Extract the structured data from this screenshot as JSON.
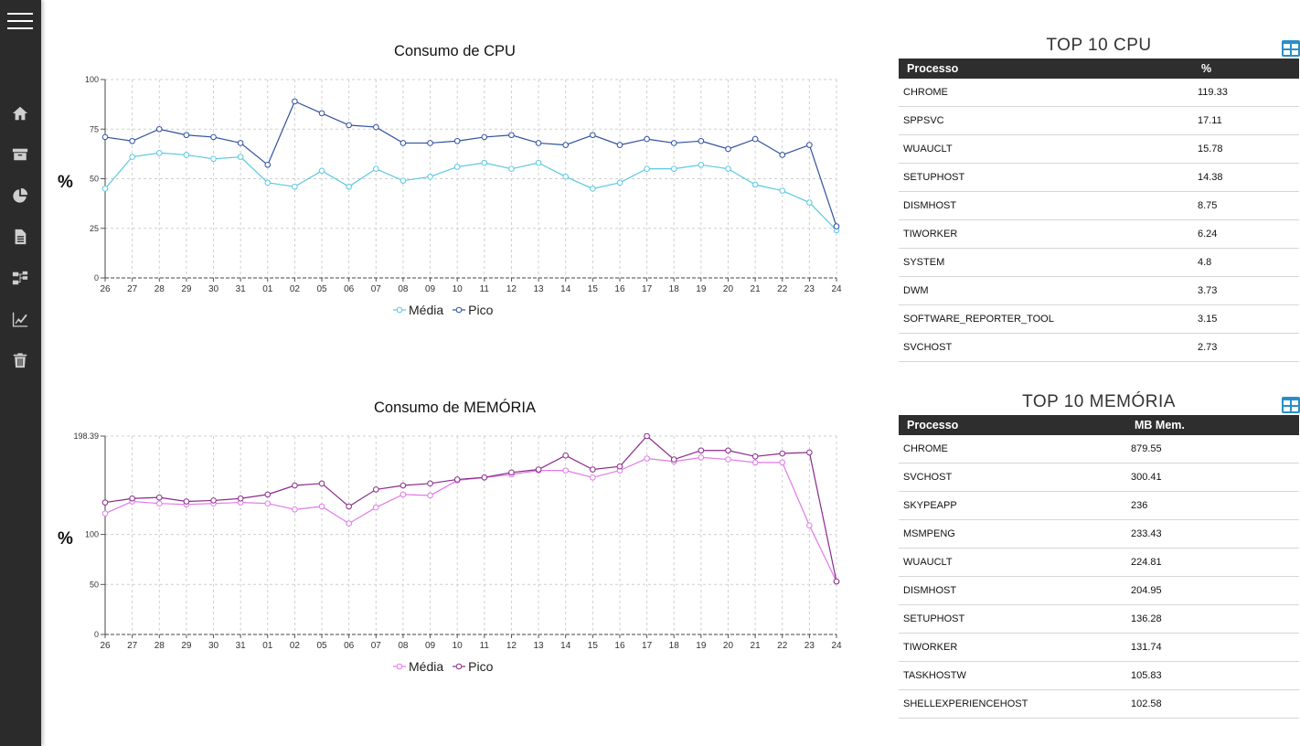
{
  "sidebar": {
    "menu_icon": "hamburger-menu-icon",
    "items": [
      {
        "icon": "home-icon"
      },
      {
        "icon": "archive-icon"
      },
      {
        "icon": "pie-chart-icon"
      },
      {
        "icon": "document-icon"
      },
      {
        "icon": "sitemap-icon"
      },
      {
        "icon": "edit-chart-icon"
      },
      {
        "icon": "trash-icon"
      }
    ]
  },
  "cpu_chart": {
    "title": "Consumo de CPU",
    "unit": "%"
  },
  "mem_chart": {
    "title": "Consumo de MEMÓRIA",
    "unit": "%"
  },
  "chart_data": [
    {
      "type": "line",
      "title": "Consumo de CPU",
      "ylabel": "%",
      "xlabel": "",
      "categories": [
        "26",
        "27",
        "28",
        "29",
        "30",
        "31",
        "01",
        "02",
        "05",
        "06",
        "07",
        "08",
        "09",
        "10",
        "11",
        "12",
        "13",
        "14",
        "15",
        "16",
        "17",
        "18",
        "19",
        "20",
        "21",
        "22",
        "23",
        "24"
      ],
      "yticks": [
        "0",
        "25",
        "50",
        "75",
        "100"
      ],
      "ylim": [
        0,
        100
      ],
      "grid": true,
      "legend": "bottom-center",
      "series": [
        {
          "name": "Média",
          "color": "#5bc8e0",
          "values": [
            45,
            61,
            63,
            62,
            60,
            61,
            48,
            46,
            54,
            46,
            55,
            49,
            51,
            56,
            58,
            55,
            58,
            51,
            45,
            48,
            55,
            55,
            57,
            55,
            47,
            44,
            38,
            24
          ]
        },
        {
          "name": "Pico",
          "color": "#2f4fa0",
          "values": [
            71,
            69,
            75,
            72,
            71,
            68,
            57,
            89,
            83,
            77,
            76,
            68,
            68,
            69,
            71,
            72,
            68,
            67,
            72,
            67,
            70,
            68,
            69,
            65,
            70,
            62,
            67,
            26
          ]
        }
      ]
    },
    {
      "type": "line",
      "title": "Consumo de MEMÓRIA",
      "ylabel": "%",
      "xlabel": "",
      "categories": [
        "26",
        "27",
        "28",
        "29",
        "30",
        "31",
        "01",
        "02",
        "05",
        "06",
        "07",
        "08",
        "09",
        "10",
        "11",
        "12",
        "13",
        "14",
        "15",
        "16",
        "17",
        "18",
        "19",
        "20",
        "21",
        "22",
        "23",
        "24"
      ],
      "yticks": [
        "0",
        "50",
        "100",
        "198.39"
      ],
      "ylim": [
        0,
        198.39
      ],
      "grid": true,
      "legend": "bottom-center",
      "series": [
        {
          "name": "Média",
          "color": "#e07ae8",
          "values": [
            121,
            133,
            131,
            130,
            131,
            132,
            131,
            125,
            128,
            111,
            127,
            140,
            139,
            154,
            157,
            160,
            164,
            164,
            157,
            164,
            176,
            173,
            177,
            175,
            172,
            172,
            109,
            53
          ]
        },
        {
          "name": "Pico",
          "color": "#8a2b8a",
          "values": [
            132,
            136,
            137,
            133,
            134,
            136,
            140,
            149,
            151,
            128,
            145,
            149,
            151,
            155,
            157,
            162,
            165,
            179,
            165,
            168,
            203,
            175,
            184,
            184,
            178,
            181,
            182,
            53
          ]
        }
      ]
    }
  ],
  "top_cpu": {
    "title": "TOP 10 CPU",
    "icon": "table-icon",
    "col_process": "Processo",
    "col_value": "%",
    "rows": [
      {
        "name": "CHROME",
        "value": "119.33"
      },
      {
        "name": "SPPSVC",
        "value": "17.11"
      },
      {
        "name": "WUAUCLT",
        "value": "15.78"
      },
      {
        "name": "SETUPHOST",
        "value": "14.38"
      },
      {
        "name": "DISMHOST",
        "value": "8.75"
      },
      {
        "name": "TIWORKER",
        "value": "6.24"
      },
      {
        "name": "SYSTEM",
        "value": "4.8"
      },
      {
        "name": "DWM",
        "value": "3.73"
      },
      {
        "name": "SOFTWARE_REPORTER_TOOL",
        "value": "3.15"
      },
      {
        "name": "SVCHOST",
        "value": "2.73"
      }
    ]
  },
  "top_mem": {
    "title": "TOP 10 MEMÓRIA",
    "icon": "table-icon",
    "col_process": "Processo",
    "col_value": "MB Mem.",
    "rows": [
      {
        "name": "CHROME",
        "value": "879.55"
      },
      {
        "name": "SVCHOST",
        "value": "300.41"
      },
      {
        "name": "SKYPEAPP",
        "value": "236"
      },
      {
        "name": "MSMPENG",
        "value": "233.43"
      },
      {
        "name": "WUAUCLT",
        "value": "224.81"
      },
      {
        "name": "DISMHOST",
        "value": "204.95"
      },
      {
        "name": "SETUPHOST",
        "value": "136.28"
      },
      {
        "name": "TIWORKER",
        "value": "131.74"
      },
      {
        "name": "TASKHOSTW",
        "value": "105.83"
      },
      {
        "name": "SHELLEXPERIENCEHOST",
        "value": "102.58"
      }
    ]
  }
}
